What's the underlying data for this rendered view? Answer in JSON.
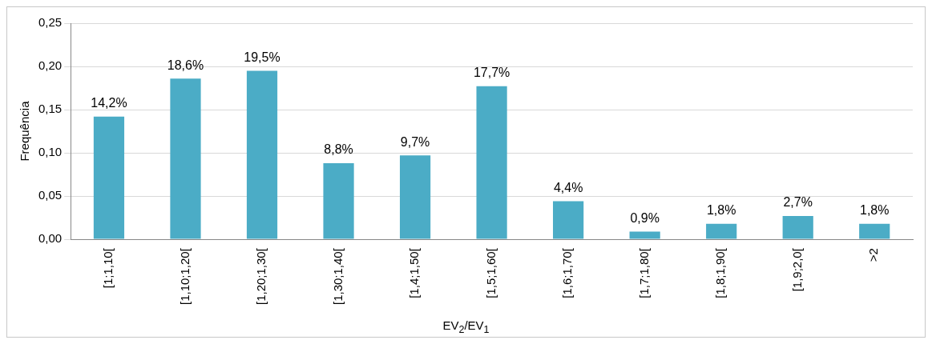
{
  "chart_data": {
    "type": "bar",
    "xlabel": "EV$_{2}$/EV$_{1}$",
    "ylabel": "Frequência",
    "categories": [
      "[1;1,10[",
      "[1,10;1,20[",
      "[1,20;1,30[",
      "[1,30;1,40[",
      "[1,4;1,50[",
      "[1,5;1,60[",
      "[1,6;1,70[",
      "[1,7;1,80[",
      "[1,8;1,90[",
      "[1,9;2,0[",
      ">2"
    ],
    "values": [
      0.142,
      0.186,
      0.195,
      0.088,
      0.097,
      0.177,
      0.044,
      0.009,
      0.018,
      0.027,
      0.018
    ],
    "value_labels": [
      "14,2%",
      "18,6%",
      "19,5%",
      "8,8%",
      "9,7%",
      "17,7%",
      "4,4%",
      "0,9%",
      "1,8%",
      "2,7%",
      "1,8%"
    ],
    "color": "#4bacc6",
    "ylim": [
      0,
      0.25
    ],
    "yticks": [
      {
        "value": 0,
        "label": "0,00"
      },
      {
        "value": 0.05,
        "label": "0,05"
      },
      {
        "value": 0.1,
        "label": "0,10"
      },
      {
        "value": 0.15,
        "label": "0,15"
      },
      {
        "value": 0.2,
        "label": "0,20"
      },
      {
        "value": 0.25,
        "label": "0,25"
      }
    ],
    "grid": "y",
    "legend": false
  }
}
